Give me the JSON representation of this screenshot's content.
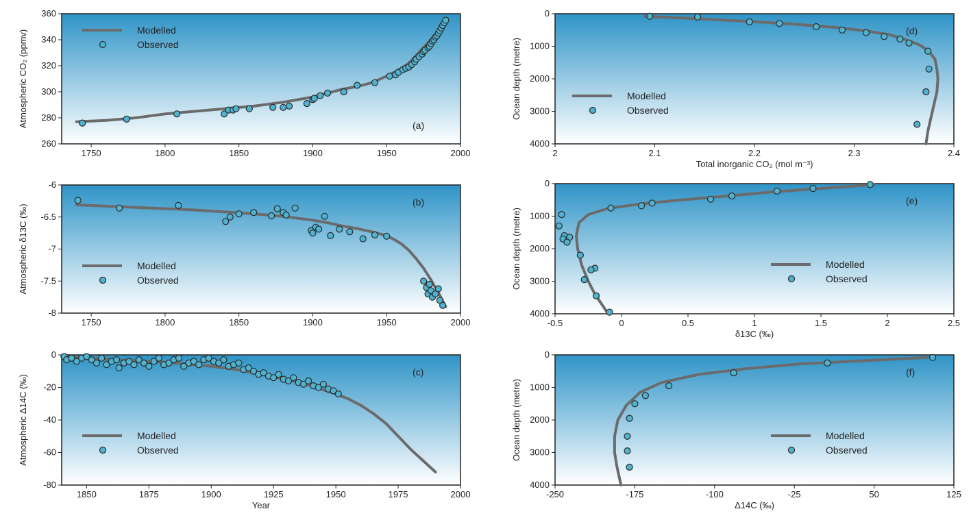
{
  "style": {
    "model_line_color": "#6b6b6b",
    "obs_fill_color": "#4fb2cf",
    "obs_stroke_color": "#2a2a2a",
    "bg_top_color": "#2f94c7",
    "bg_bottom_color": "#ffffff"
  },
  "legend": {
    "modelled": "Modelled",
    "observed": "Observed"
  },
  "chart_data": [
    {
      "id": "a",
      "type": "line",
      "panel_label": "(a)",
      "xlabel": "",
      "ylabel": "Atmospheric CO₂ (ppmv)",
      "xlim": [
        1730,
        2000
      ],
      "ylim": [
        260,
        360
      ],
      "x_ticks": [
        1750,
        1800,
        1850,
        1900,
        1950,
        2000
      ],
      "y_ticks": [
        260,
        280,
        300,
        320,
        340,
        360
      ],
      "x_tick_labels": [
        "1750",
        "1800",
        "1850",
        "1900",
        "1950",
        "2000"
      ],
      "y_tick_labels": [
        "260",
        "280",
        "300",
        "320",
        "340",
        "360"
      ],
      "legend_position": "top-left",
      "series": [
        {
          "name": "Modelled",
          "kind": "line",
          "x": [
            1740,
            1760,
            1780,
            1800,
            1820,
            1840,
            1860,
            1880,
            1900,
            1910,
            1920,
            1930,
            1940,
            1950,
            1955,
            1960,
            1965,
            1970,
            1975,
            1980,
            1985,
            1990
          ],
          "y": [
            277,
            278,
            280,
            283,
            285,
            287,
            289,
            292,
            296,
            299,
            302,
            304,
            307,
            312,
            315,
            318,
            322,
            328,
            334,
            340,
            347,
            355
          ]
        },
        {
          "name": "Observed",
          "kind": "scatter",
          "x": [
            1744,
            1774,
            1808,
            1840,
            1843,
            1846,
            1848,
            1857,
            1873,
            1880,
            1884,
            1896,
            1900,
            1901,
            1905,
            1910,
            1921,
            1930,
            1942,
            1952,
            1956,
            1958,
            1961,
            1963,
            1965,
            1967,
            1969,
            1970,
            1972,
            1974,
            1975,
            1976,
            1978,
            1979,
            1980,
            1981,
            1982,
            1983,
            1984,
            1985,
            1986,
            1987,
            1988,
            1989,
            1990
          ],
          "y": [
            276,
            279,
            283,
            283,
            286,
            286,
            287,
            287,
            288,
            288,
            289,
            291,
            294,
            295,
            297,
            299,
            300,
            305,
            307,
            312,
            313,
            315,
            317,
            318,
            319,
            321,
            323,
            325,
            327,
            329,
            331,
            332,
            334,
            335,
            337,
            339,
            340,
            342,
            343,
            345,
            347,
            349,
            351,
            353,
            355
          ]
        }
      ]
    },
    {
      "id": "b",
      "type": "line",
      "panel_label": "(b)",
      "xlabel": "",
      "ylabel": "Atmospheric δ13C (‰)",
      "xlim": [
        1730,
        2000
      ],
      "ylim": [
        -8,
        -6
      ],
      "x_ticks": [
        1750,
        1800,
        1850,
        1900,
        1950,
        2000
      ],
      "y_ticks": [
        -8,
        -7.5,
        -7,
        -6.5,
        -6
      ],
      "x_tick_labels": [
        "1750",
        "1800",
        "1850",
        "1900",
        "1950",
        "2000"
      ],
      "y_tick_labels": [
        "-8",
        "-7.5",
        "-7",
        "-6.5",
        "-6"
      ],
      "legend_position": "bottom-left",
      "series": [
        {
          "name": "Modelled",
          "kind": "line",
          "x": [
            1740,
            1760,
            1780,
            1800,
            1820,
            1840,
            1860,
            1880,
            1900,
            1910,
            1920,
            1930,
            1940,
            1950,
            1955,
            1960,
            1965,
            1970,
            1975,
            1980,
            1985,
            1990
          ],
          "y": [
            -6.31,
            -6.33,
            -6.35,
            -6.37,
            -6.39,
            -6.42,
            -6.45,
            -6.49,
            -6.55,
            -6.59,
            -6.64,
            -6.68,
            -6.73,
            -6.79,
            -6.85,
            -6.92,
            -7.02,
            -7.15,
            -7.3,
            -7.48,
            -7.68,
            -7.9
          ]
        },
        {
          "name": "Observed",
          "kind": "scatter",
          "x": [
            1741,
            1769,
            1809,
            1841,
            1844,
            1850,
            1860,
            1872,
            1876,
            1880,
            1882,
            1888,
            1899,
            1900,
            1902,
            1904,
            1908,
            1912,
            1918,
            1925,
            1934,
            1942,
            1950,
            1975,
            1977,
            1978,
            1979,
            1980,
            1981,
            1983,
            1985,
            1986,
            1988
          ],
          "y": [
            -6.24,
            -6.36,
            -6.32,
            -6.57,
            -6.5,
            -6.45,
            -6.43,
            -6.48,
            -6.37,
            -6.43,
            -6.47,
            -6.36,
            -6.71,
            -6.75,
            -6.66,
            -6.69,
            -6.49,
            -6.79,
            -6.69,
            -6.73,
            -6.84,
            -6.78,
            -6.8,
            -7.5,
            -7.6,
            -7.7,
            -7.55,
            -7.65,
            -7.75,
            -7.7,
            -7.62,
            -7.8,
            -7.88
          ]
        }
      ]
    },
    {
      "id": "c",
      "type": "line",
      "panel_label": "(c)",
      "xlabel": "Year",
      "ylabel": "Atmospheric Δ14C (‰)",
      "xlim": [
        1840,
        2000
      ],
      "ylim": [
        -80,
        0
      ],
      "x_ticks": [
        1850,
        1875,
        1900,
        1925,
        1950,
        1975,
        2000
      ],
      "y_ticks": [
        -80,
        -60,
        -40,
        -20,
        0
      ],
      "x_tick_labels": [
        "1850",
        "1875",
        "1900",
        "1925",
        "1950",
        "1975",
        "2000"
      ],
      "y_tick_labels": [
        "-80",
        "-60",
        "-40",
        "-20",
        "0"
      ],
      "legend_position": "bottom-left",
      "series": [
        {
          "name": "Modelled",
          "kind": "line",
          "x": [
            1840,
            1850,
            1860,
            1870,
            1880,
            1890,
            1900,
            1910,
            1920,
            1930,
            1940,
            1950,
            1955,
            1960,
            1965,
            1970,
            1975,
            1980,
            1985,
            1990
          ],
          "y": [
            -1,
            -2,
            -3,
            -3.5,
            -4.5,
            -5.5,
            -7,
            -9,
            -12,
            -15,
            -19,
            -24,
            -27,
            -31,
            -36,
            -42,
            -50,
            -58,
            -65,
            -72
          ]
        },
        {
          "name": "Observed",
          "kind": "scatter",
          "x": [
            1841,
            1842,
            1844,
            1846,
            1848,
            1850,
            1852,
            1854,
            1856,
            1858,
            1860,
            1862,
            1863,
            1865,
            1867,
            1869,
            1871,
            1873,
            1875,
            1877,
            1879,
            1881,
            1883,
            1885,
            1887,
            1889,
            1891,
            1893,
            1895,
            1897,
            1899,
            1901,
            1903,
            1905,
            1907,
            1909,
            1911,
            1913,
            1915,
            1917,
            1919,
            1921,
            1923,
            1925,
            1927,
            1929,
            1931,
            1933,
            1935,
            1937,
            1939,
            1941,
            1943,
            1945,
            1947,
            1949,
            1951
          ],
          "y": [
            -1,
            -3,
            -2,
            -4,
            -2,
            -1,
            -3,
            -5,
            -2,
            -6,
            -4,
            -3,
            -8,
            -5,
            -4,
            -6,
            -3,
            -5,
            -7,
            -4,
            -2,
            -6,
            -5,
            -3,
            -2,
            -7,
            -5,
            -4,
            -6,
            -3,
            -2,
            -4,
            -5,
            -3,
            -7,
            -6,
            -5,
            -9,
            -8,
            -10,
            -12,
            -11,
            -13,
            -14,
            -12,
            -15,
            -16,
            -14,
            -17,
            -18,
            -16,
            -19,
            -20,
            -18,
            -21,
            -22,
            -24
          ]
        }
      ]
    },
    {
      "id": "d",
      "type": "line",
      "panel_label": "(d)",
      "xlabel": "Total inorganic CO₂ (mol m⁻³)",
      "ylabel": "Ocean depth (metre)",
      "xlim": [
        2,
        2.4
      ],
      "ylim": [
        4000,
        0
      ],
      "x_ticks": [
        2,
        2.1,
        2.2,
        2.3,
        2.4
      ],
      "y_ticks": [
        0,
        1000,
        2000,
        3000,
        4000
      ],
      "x_tick_labels": [
        "2",
        "2.1",
        "2.2",
        "2.3",
        "2.4"
      ],
      "y_tick_labels": [
        "0",
        "1000",
        "2000",
        "3000",
        "4000"
      ],
      "legend_position": "center-left",
      "series": [
        {
          "name": "Modelled",
          "kind": "line",
          "x": [
            2.09,
            2.14,
            2.19,
            2.24,
            2.28,
            2.31,
            2.335,
            2.35,
            2.365,
            2.375,
            2.381,
            2.383,
            2.384,
            2.383,
            2.38,
            2.377,
            2.374,
            2.372
          ],
          "y": [
            80,
            150,
            230,
            320,
            420,
            520,
            640,
            780,
            950,
            1150,
            1400,
            1700,
            2000,
            2400,
            2800,
            3200,
            3600,
            4000
          ]
        },
        {
          "name": "Observed",
          "kind": "scatter",
          "x": [
            2.095,
            2.143,
            2.195,
            2.225,
            2.262,
            2.288,
            2.312,
            2.33,
            2.346,
            2.355,
            2.374,
            2.375,
            2.372,
            2.363
          ],
          "y": [
            80,
            100,
            250,
            300,
            400,
            500,
            580,
            700,
            780,
            900,
            1150,
            1700,
            2400,
            3400
          ]
        }
      ]
    },
    {
      "id": "e",
      "type": "line",
      "panel_label": "(e)",
      "xlabel": "δ13C (‰)",
      "ylabel": "Ocean depth (metre)",
      "xlim": [
        -0.5,
        2.5
      ],
      "ylim": [
        4000,
        0
      ],
      "x_ticks": [
        -0.5,
        0,
        0.5,
        1,
        1.5,
        2,
        2.5
      ],
      "y_ticks": [
        0,
        1000,
        2000,
        3000,
        4000
      ],
      "x_tick_labels": [
        "-0.5",
        "0",
        "0.5",
        "1",
        "1.5",
        "2",
        "2.5"
      ],
      "y_tick_labels": [
        "0",
        "1000",
        "2000",
        "3000",
        "4000"
      ],
      "legend_position": "center-right",
      "series": [
        {
          "name": "Modelled",
          "kind": "line",
          "x": [
            1.9,
            1.5,
            1.15,
            0.8,
            0.45,
            0.15,
            -0.1,
            -0.25,
            -0.32,
            -0.34,
            -0.33,
            -0.3,
            -0.25,
            -0.2,
            -0.15,
            -0.1
          ],
          "y": [
            30,
            150,
            250,
            380,
            500,
            620,
            760,
            950,
            1200,
            1600,
            2000,
            2500,
            3000,
            3400,
            3700,
            4000
          ]
        },
        {
          "name": "Observed",
          "kind": "scatter",
          "x": [
            1.87,
            1.44,
            1.17,
            0.83,
            0.67,
            0.23,
            0.15,
            -0.08,
            -0.45,
            -0.47,
            -0.43,
            -0.44,
            -0.39,
            -0.41,
            -0.31,
            -0.2,
            -0.23,
            -0.28,
            -0.19,
            -0.09
          ],
          "y": [
            30,
            150,
            230,
            380,
            480,
            600,
            680,
            750,
            950,
            1300,
            1600,
            1700,
            1650,
            1800,
            2200,
            2600,
            2650,
            2950,
            3450,
            3950
          ]
        }
      ]
    },
    {
      "id": "f",
      "type": "line",
      "panel_label": "(f)",
      "xlabel": "Δ14C (‰)",
      "ylabel": "Ocean depth (metre)",
      "xlim": [
        -250,
        125
      ],
      "ylim": [
        4000,
        0
      ],
      "x_ticks": [
        -250,
        -175,
        -100,
        -25,
        50,
        125
      ],
      "y_ticks": [
        0,
        1000,
        2000,
        3000,
        4000
      ],
      "x_tick_labels": [
        "-250",
        "-175",
        "-100",
        "-25",
        "50",
        "125"
      ],
      "y_tick_labels": [
        "0",
        "1000",
        "2000",
        "3000",
        "4000"
      ],
      "legend_position": "center-right",
      "series": [
        {
          "name": "Modelled",
          "kind": "line",
          "x": [
            100,
            40,
            -20,
            -70,
            -115,
            -150,
            -170,
            -183,
            -191,
            -194,
            -194,
            -192,
            -190,
            -188
          ],
          "y": [
            80,
            180,
            280,
            420,
            600,
            850,
            1150,
            1550,
            2000,
            2500,
            3000,
            3400,
            3700,
            4000
          ]
        },
        {
          "name": "Observed",
          "kind": "scatter",
          "x": [
            105,
            6,
            -82,
            -143,
            -165,
            -175,
            -180,
            -182,
            -182,
            -180
          ],
          "y": [
            80,
            250,
            550,
            950,
            1250,
            1500,
            1950,
            2500,
            2950,
            3450
          ]
        }
      ]
    }
  ]
}
